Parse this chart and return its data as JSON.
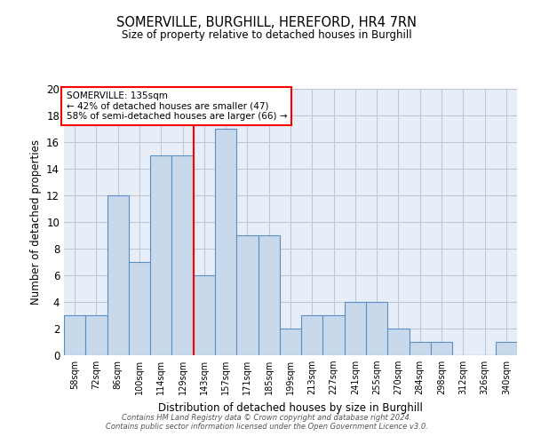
{
  "title": "SOMERVILLE, BURGHILL, HEREFORD, HR4 7RN",
  "subtitle": "Size of property relative to detached houses in Burghill",
  "xlabel": "Distribution of detached houses by size in Burghill",
  "ylabel": "Number of detached properties",
  "categories": [
    "58sqm",
    "72sqm",
    "86sqm",
    "100sqm",
    "114sqm",
    "129sqm",
    "143sqm",
    "157sqm",
    "171sqm",
    "185sqm",
    "199sqm",
    "213sqm",
    "227sqm",
    "241sqm",
    "255sqm",
    "270sqm",
    "284sqm",
    "298sqm",
    "312sqm",
    "326sqm",
    "340sqm"
  ],
  "values": [
    3,
    3,
    12,
    7,
    15,
    15,
    6,
    17,
    9,
    9,
    2,
    3,
    3,
    4,
    4,
    2,
    1,
    1,
    0,
    0,
    1
  ],
  "bar_color": "#c9d9ec",
  "bar_edge_color": "#5a8fc3",
  "vline_x_index": 6.0,
  "vline_color": "red",
  "annotation_title": "SOMERVILLE: 135sqm",
  "annotation_line1": "← 42% of detached houses are smaller (47)",
  "annotation_line2": "58% of semi-detached houses are larger (66) →",
  "annotation_box_color": "red",
  "ylim": [
    0,
    20
  ],
  "yticks": [
    0,
    2,
    4,
    6,
    8,
    10,
    12,
    14,
    16,
    18,
    20
  ],
  "grid_color": "#c0c8d8",
  "background_color": "#e8eef7",
  "footer_line1": "Contains HM Land Registry data © Crown copyright and database right 2024.",
  "footer_line2": "Contains public sector information licensed under the Open Government Licence v3.0."
}
